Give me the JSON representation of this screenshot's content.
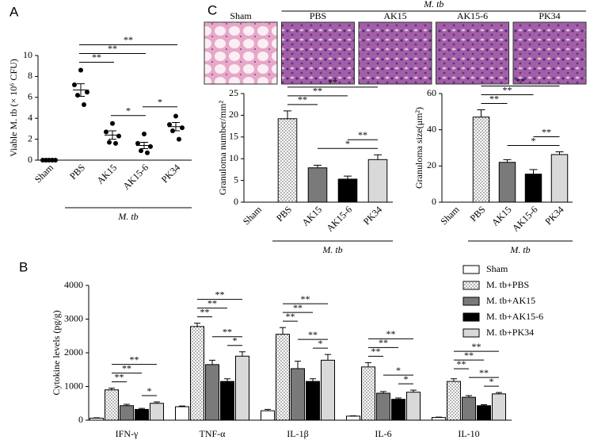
{
  "panel_labels": [
    "A",
    "B",
    "C"
  ],
  "micrographs": {
    "labels": [
      "Sham",
      "PBS",
      "AK15",
      "AK15-6",
      "PK34"
    ],
    "group_label": "M. tb",
    "group_from": "PBS",
    "group_to": "PK34"
  },
  "chart_data": [
    {
      "type": "dot",
      "ylabel": "Viable M. tb (× 10⁶ CFU)",
      "categories": [
        "Sham",
        "PBS",
        "AK15",
        "AK15-6",
        "PK34"
      ],
      "points": [
        [
          0,
          0,
          0,
          0,
          0
        ],
        [
          8.6,
          7.2,
          6.5,
          6.2,
          5.3
        ],
        [
          3.5,
          2.7,
          2.3,
          1.7,
          1.6
        ],
        [
          2.5,
          1.6,
          1.3,
          0.9,
          0.7
        ],
        [
          4.2,
          3.4,
          3.1,
          2.8,
          2.0
        ]
      ],
      "means": [
        0,
        6.7,
        2.4,
        1.4,
        3.2
      ],
      "errors": [
        0,
        0.6,
        0.4,
        0.3,
        0.4
      ],
      "color": "#000000",
      "ylim": [
        0,
        10
      ],
      "yticks": [
        0,
        2,
        4,
        6,
        8,
        10
      ],
      "xtick_rotation": -45,
      "group_label": "M. tb",
      "group_from": "PBS",
      "group_to": "PK34",
      "brackets": [
        {
          "from": "AK15",
          "to": "AK15-6",
          "label": "*"
        },
        {
          "from": "AK15-6",
          "to": "PK34",
          "label": "*"
        },
        {
          "from": "PBS",
          "to": "AK15",
          "label": "**"
        },
        {
          "from": "PBS",
          "to": "AK15-6",
          "label": "**"
        },
        {
          "from": "PBS",
          "to": "PK34",
          "label": "**"
        }
      ]
    },
    {
      "type": "grouped_bar",
      "ylabel": "Cytokine levels (pg/g)",
      "categories": [
        "IFN-γ",
        "TNF-α",
        "IL-1β",
        "IL-6",
        "IL-10"
      ],
      "ylim": [
        0,
        4000
      ],
      "yticks": [
        0,
        1000,
        2000,
        3000,
        4000
      ],
      "legend": "upper right",
      "series": [
        {
          "name": "Sham",
          "color": "#ffffff",
          "values": [
            60,
            400,
            280,
            120,
            80
          ],
          "errors": [
            10,
            20,
            40,
            10,
            10
          ]
        },
        {
          "name": "M. tb+PBS",
          "color": "#ffffff",
          "pattern": "dots",
          "values": [
            900,
            2780,
            2550,
            1580,
            1150
          ],
          "errors": [
            50,
            100,
            200,
            130,
            80
          ]
        },
        {
          "name": "M. tb+AK15",
          "color": "#7a7a7a",
          "values": [
            430,
            1650,
            1530,
            800,
            680
          ],
          "errors": [
            40,
            130,
            220,
            50,
            50
          ]
        },
        {
          "name": "M. tb+AK15-6",
          "color": "#000000",
          "values": [
            320,
            1150,
            1150,
            620,
            430
          ],
          "errors": [
            30,
            80,
            80,
            40,
            30
          ]
        },
        {
          "name": "M. tb+PK34",
          "color": "#d9d9d9",
          "values": [
            500,
            1900,
            1780,
            830,
            780
          ],
          "errors": [
            40,
            130,
            170,
            60,
            40
          ]
        }
      ],
      "brackets": [
        {
          "category": "IFN-γ",
          "from": "M. tb+AK15-6",
          "to": "M. tb+PK34",
          "label": "*"
        },
        {
          "category": "IFN-γ",
          "from": "M. tb+PBS",
          "to": "M. tb+AK15",
          "label": "**"
        },
        {
          "category": "IFN-γ",
          "from": "M. tb+PBS",
          "to": "M. tb+AK15-6",
          "label": "**"
        },
        {
          "category": "IFN-γ",
          "from": "M. tb+PBS",
          "to": "M. tb+PK34",
          "label": "**"
        },
        {
          "category": "TNF-α",
          "from": "M. tb+AK15-6",
          "to": "M. tb+PK34",
          "label": "*"
        },
        {
          "category": "TNF-α",
          "from": "M. tb+AK15",
          "to": "M. tb+PK34",
          "label": "**"
        },
        {
          "category": "TNF-α",
          "from": "M. tb+PBS",
          "to": "M. tb+AK15",
          "label": "**"
        },
        {
          "category": "TNF-α",
          "from": "M. tb+PBS",
          "to": "M. tb+AK15-6",
          "label": "**"
        },
        {
          "category": "TNF-α",
          "from": "M. tb+PBS",
          "to": "M. tb+PK34",
          "label": "**"
        },
        {
          "category": "IL-1β",
          "from": "M. tb+AK15-6",
          "to": "M. tb+PK34",
          "label": "*"
        },
        {
          "category": "IL-1β",
          "from": "M. tb+AK15",
          "to": "M. tb+PK34",
          "label": "**"
        },
        {
          "category": "IL-1β",
          "from": "M. tb+PBS",
          "to": "M. tb+AK15",
          "label": "**"
        },
        {
          "category": "IL-1β",
          "from": "M. tb+PBS",
          "to": "M. tb+AK15-6",
          "label": "**"
        },
        {
          "category": "IL-1β",
          "from": "M. tb+PBS",
          "to": "M. tb+PK34",
          "label": "**"
        },
        {
          "category": "IL-6",
          "from": "M. tb+AK15-6",
          "to": "M. tb+PK34",
          "label": "*"
        },
        {
          "category": "IL-6",
          "from": "M. tb+AK15",
          "to": "M. tb+PK34",
          "label": "*"
        },
        {
          "category": "IL-6",
          "from": "M. tb+PBS",
          "to": "M. tb+AK15",
          "label": "**"
        },
        {
          "category": "IL-6",
          "from": "M. tb+PBS",
          "to": "M. tb+AK15-6",
          "label": "**"
        },
        {
          "category": "IL-6",
          "from": "M. tb+PBS",
          "to": "M. tb+PK34",
          "label": "**"
        },
        {
          "category": "IL-10",
          "from": "M. tb+AK15-6",
          "to": "M. tb+PK34",
          "label": "*"
        },
        {
          "category": "IL-10",
          "from": "M. tb+AK15",
          "to": "M. tb+PK34",
          "label": "**"
        },
        {
          "category": "IL-10",
          "from": "M. tb+PBS",
          "to": "M. tb+AK15",
          "label": "**"
        },
        {
          "category": "IL-10",
          "from": "M. tb+PBS",
          "to": "M. tb+AK15-6",
          "label": "**"
        },
        {
          "category": "IL-10",
          "from": "M. tb+PBS",
          "to": "M. tb+PK34",
          "label": "**"
        }
      ]
    },
    {
      "type": "bar",
      "ylabel": "Granuloma number/mm²",
      "categories": [
        "Sham",
        "PBS",
        "AK15",
        "AK15-6",
        "PK34"
      ],
      "values": [
        0,
        19.2,
        7.9,
        5.3,
        9.8
      ],
      "errors": [
        0,
        1.8,
        0.6,
        0.7,
        1.1
      ],
      "colors": [
        "#ffffff",
        "#ffffff",
        "#7a7a7a",
        "#000000",
        "#d9d9d9"
      ],
      "patterns": [
        null,
        "dots",
        null,
        null,
        null
      ],
      "ylim": [
        0,
        25
      ],
      "yticks": [
        0,
        5,
        10,
        15,
        20,
        25
      ],
      "xtick_rotation": -45,
      "group_label": "M. tb",
      "group_from": "PBS",
      "group_to": "PK34",
      "brackets": [
        {
          "from": "AK15",
          "to": "PK34",
          "label": "*"
        },
        {
          "from": "AK15-6",
          "to": "PK34",
          "label": "**"
        },
        {
          "from": "PBS",
          "to": "AK15",
          "label": "**"
        },
        {
          "from": "PBS",
          "to": "AK15-6",
          "label": "**"
        },
        {
          "from": "PBS",
          "to": "PK34",
          "label": "**"
        }
      ]
    },
    {
      "type": "bar",
      "ylabel": "Granuloma size(μm²)",
      "categories": [
        "Sham",
        "PBS",
        "AK15",
        "AK15-6",
        "PK34"
      ],
      "values": [
        0,
        47,
        22,
        15.5,
        26.3
      ],
      "errors": [
        0,
        4,
        1.5,
        2.5,
        1.5
      ],
      "colors": [
        "#ffffff",
        "#ffffff",
        "#7a7a7a",
        "#000000",
        "#d9d9d9"
      ],
      "patterns": [
        null,
        "dots",
        null,
        null,
        null
      ],
      "ylim": [
        0,
        60
      ],
      "yticks": [
        0,
        20,
        40,
        60
      ],
      "xtick_rotation": -45,
      "group_label": "M. tb",
      "group_from": "PBS",
      "group_to": "PK34",
      "brackets": [
        {
          "from": "AK15",
          "to": "PK34",
          "label": "*"
        },
        {
          "from": "AK15-6",
          "to": "PK34",
          "label": "**"
        },
        {
          "from": "PBS",
          "to": "AK15",
          "label": "**"
        },
        {
          "from": "PBS",
          "to": "AK15-6",
          "label": "**"
        },
        {
          "from": "PBS",
          "to": "PK34",
          "label": "**"
        }
      ]
    }
  ]
}
